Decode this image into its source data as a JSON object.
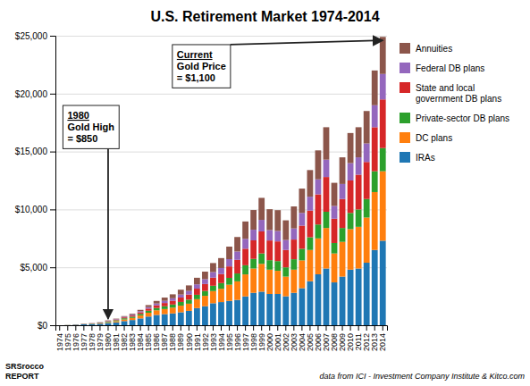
{
  "chart_data": {
    "type": "bar",
    "stacked": true,
    "title": "U.S. Retirement Market 1974-2014",
    "categories": [
      "1974",
      "1975",
      "1976",
      "1977",
      "1978",
      "1979",
      "1980",
      "1981",
      "1982",
      "1983",
      "1984",
      "1985",
      "1986",
      "1987",
      "1988",
      "1989",
      "1990",
      "1991",
      "1992",
      "1993",
      "1994",
      "1995",
      "1996",
      "1997",
      "1998",
      "1999",
      "2000",
      "2001",
      "2002",
      "2003",
      "2004",
      "2005",
      "2006",
      "2007",
      "2008",
      "2009",
      "2010",
      "2011",
      "2012",
      "2013",
      "2014"
    ],
    "series": [
      {
        "name": "IRAs",
        "values": [
          0,
          10,
          40,
          80,
          100,
          130,
          200,
          250,
          360,
          450,
          590,
          750,
          890,
          960,
          1020,
          1120,
          1240,
          1480,
          1640,
          1900,
          2000,
          2100,
          2190,
          2490,
          2800,
          2900,
          2700,
          2700,
          2500,
          2800,
          3200,
          3800,
          4400,
          4900,
          3700,
          4200,
          4800,
          4900,
          5400,
          6500,
          7300
        ]
      },
      {
        "name": "DC plans",
        "values": [
          0,
          5,
          10,
          15,
          20,
          30,
          60,
          100,
          140,
          180,
          250,
          330,
          400,
          440,
          500,
          570,
          620,
          770,
          900,
          1050,
          1150,
          1400,
          1600,
          1900,
          2100,
          2400,
          2100,
          2000,
          1700,
          2000,
          2400,
          2700,
          3100,
          3500,
          2500,
          3000,
          3500,
          3600,
          3900,
          5000,
          6000
        ]
      },
      {
        "name": "Private-sector DB plans",
        "values": [
          0,
          5,
          10,
          15,
          25,
          40,
          60,
          80,
          100,
          110,
          140,
          170,
          200,
          240,
          270,
          320,
          350,
          380,
          420,
          460,
          490,
          590,
          680,
          790,
          830,
          900,
          820,
          840,
          800,
          900,
          1000,
          1100,
          1200,
          1400,
          900,
          1200,
          1400,
          1500,
          1600,
          1800,
          2000
        ]
      },
      {
        "name": "State and local\ngovernment DB plans",
        "values": [
          0,
          4,
          8,
          12,
          18,
          25,
          40,
          60,
          80,
          100,
          140,
          190,
          230,
          280,
          320,
          380,
          440,
          530,
          600,
          700,
          780,
          990,
          1180,
          1430,
          1600,
          1900,
          1700,
          1700,
          1500,
          1700,
          2000,
          2300,
          2600,
          3000,
          2100,
          2500,
          2800,
          3000,
          3200,
          3800,
          4200
        ]
      },
      {
        "name": "Federal DB plans",
        "values": [
          0,
          3,
          6,
          10,
          14,
          20,
          30,
          40,
          55,
          70,
          90,
          130,
          160,
          190,
          220,
          260,
          310,
          370,
          420,
          480,
          520,
          630,
          720,
          850,
          920,
          1000,
          900,
          900,
          860,
          960,
          1100,
          1200,
          1300,
          1500,
          1100,
          1300,
          1500,
          1500,
          1600,
          1900,
          2200
        ]
      },
      {
        "name": "Annuities",
        "values": [
          0,
          2,
          5,
          8,
          12,
          18,
          30,
          40,
          55,
          80,
          120,
          170,
          220,
          280,
          340,
          420,
          480,
          570,
          650,
          780,
          860,
          1080,
          1250,
          1500,
          1700,
          1900,
          1800,
          1800,
          1700,
          1900,
          2100,
          2300,
          2500,
          2800,
          2000,
          2300,
          2600,
          2600,
          2800,
          3000,
          3200
        ]
      }
    ],
    "ylim": [
      0,
      25000
    ],
    "yticks": [
      {
        "value": 0,
        "label": "$0"
      },
      {
        "value": 5000,
        "label": "$5,000"
      },
      {
        "value": 10000,
        "label": "$10,000"
      },
      {
        "value": 15000,
        "label": "$15,000"
      },
      {
        "value": 20000,
        "label": "$20,000"
      },
      {
        "value": 25000,
        "label": "$25,000"
      }
    ],
    "grid": true,
    "legend": "right",
    "annotations": [
      {
        "text": "1980\nGold High\n= $850",
        "x": "1980",
        "y": 550
      },
      {
        "text": "Current\nGold Price\n= $1,100",
        "x": "2014",
        "y": 24600
      },
      {
        "text": "SRSrocco\nREPORT"
      }
    ],
    "caption": "data from ICI - Investment Company Institute & Kitco.com"
  }
}
